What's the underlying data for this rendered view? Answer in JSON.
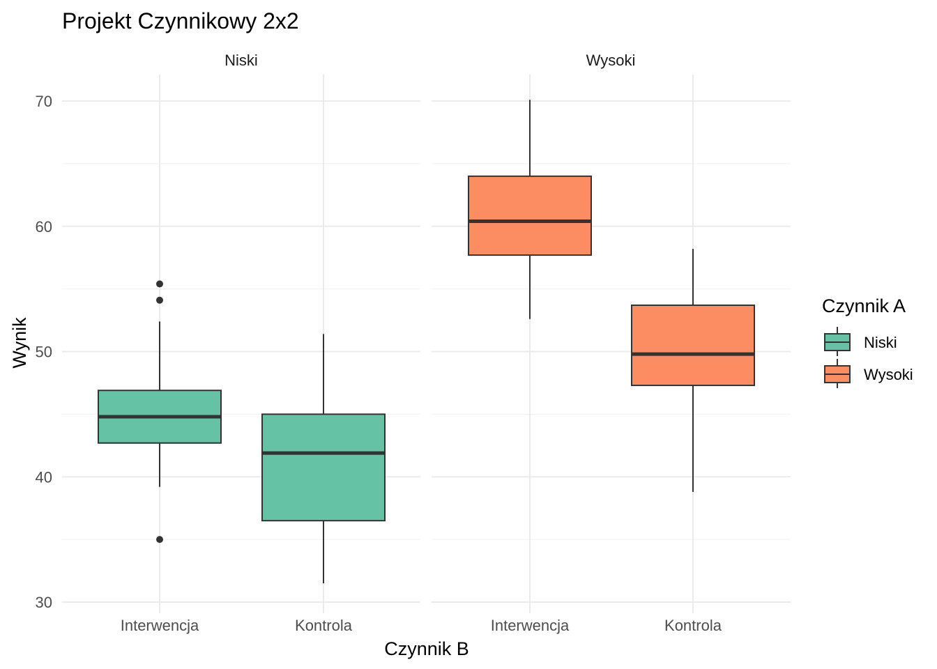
{
  "chart_data": {
    "type": "boxplot",
    "title": "Projekt Czynnikowy 2x2",
    "xlabel": "Czynnik B",
    "ylabel": "Wynik",
    "ylim": [
      30,
      72
    ],
    "y_ticks": [
      30,
      40,
      50,
      60,
      70
    ],
    "categories": [
      "Interwencja",
      "Kontrola"
    ],
    "legend": {
      "title": "Czynnik A",
      "position": "right",
      "items": [
        {
          "label": "Niski",
          "color": "#66c2a5"
        },
        {
          "label": "Wysoki",
          "color": "#fc8d62"
        }
      ]
    },
    "panels": [
      {
        "label": "Niski",
        "fill": "#66c2a5",
        "boxes": [
          {
            "category": "Interwencja",
            "whisker_low": 39.2,
            "q1": 42.7,
            "median": 44.8,
            "q3": 46.9,
            "whisker_high": 52.4,
            "outliers": [
              55.4,
              54.1,
              35.0
            ]
          },
          {
            "category": "Kontrola",
            "whisker_low": 31.5,
            "q1": 36.5,
            "median": 41.9,
            "q3": 45.0,
            "whisker_high": 51.4,
            "outliers": []
          }
        ]
      },
      {
        "label": "Wysoki",
        "fill": "#fc8d62",
        "boxes": [
          {
            "category": "Interwencja",
            "whisker_low": 52.6,
            "q1": 57.7,
            "median": 60.4,
            "q3": 64.0,
            "whisker_high": 70.1,
            "outliers": []
          },
          {
            "category": "Kontrola",
            "whisker_low": 38.8,
            "q1": 47.3,
            "median": 49.8,
            "q3": 53.7,
            "whisker_high": 58.2,
            "outliers": []
          }
        ]
      }
    ]
  }
}
